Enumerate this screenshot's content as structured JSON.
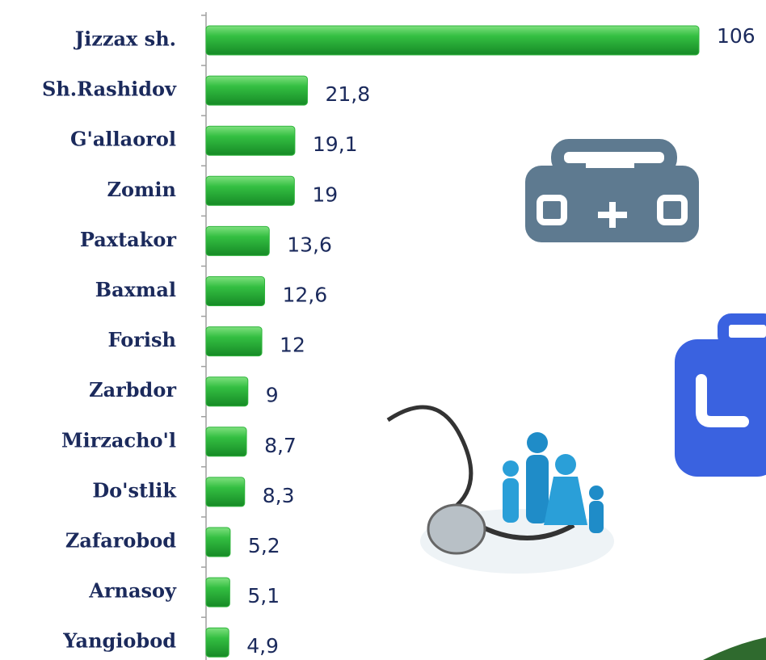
{
  "chart_data": {
    "type": "hbar",
    "categories": [
      "Jizzax sh.",
      "Sh.Rashidov",
      "G'allaorol",
      "Zomin",
      "Paxtakor",
      "Baxmal",
      "Forish",
      "Zarbdor",
      "Mirzacho'l",
      "Do'stlik",
      "Zafarobod",
      "Arnasoy",
      "Yangiobod"
    ],
    "values": [
      106,
      21.8,
      19.1,
      19,
      13.6,
      12.6,
      12,
      9,
      8.7,
      8.3,
      5.2,
      5.1,
      4.9
    ],
    "value_labels": [
      "106",
      "21,8",
      "19,1",
      "19",
      "13,6",
      "12,6",
      "12",
      "9",
      "8,7",
      "8,3",
      "5,2",
      "5,1",
      "4,9"
    ],
    "color": "#2fb53c",
    "xlim": [
      0,
      106
    ]
  }
}
